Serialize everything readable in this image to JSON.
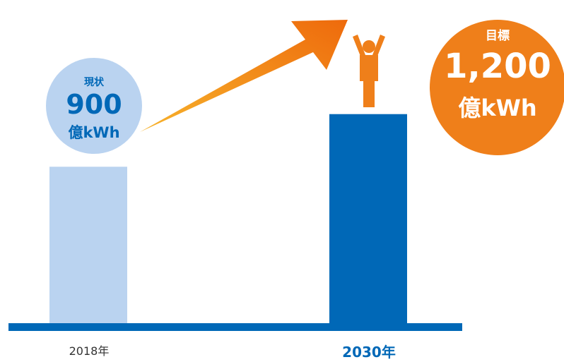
{
  "chart_data": {
    "type": "bar",
    "categories": [
      "2018年",
      "2030年"
    ],
    "values": [
      900,
      1200
    ],
    "title": "",
    "xlabel": "",
    "ylabel": "",
    "ylim": [
      0,
      1400
    ],
    "bar_colors": [
      "#bad3f0",
      "#0068b7"
    ],
    "axis_color": "#0068b7",
    "annotations": {
      "current": {
        "label": "現状",
        "value": "900",
        "unit": "億kWh",
        "color": "#bad3f0"
      },
      "target": {
        "label": "目標",
        "value": "1,200",
        "unit": "億kWh",
        "color": "#ef7f1a"
      }
    },
    "arrow_color": "#ef7f1a",
    "figure_icon": "person-cheering-icon"
  }
}
